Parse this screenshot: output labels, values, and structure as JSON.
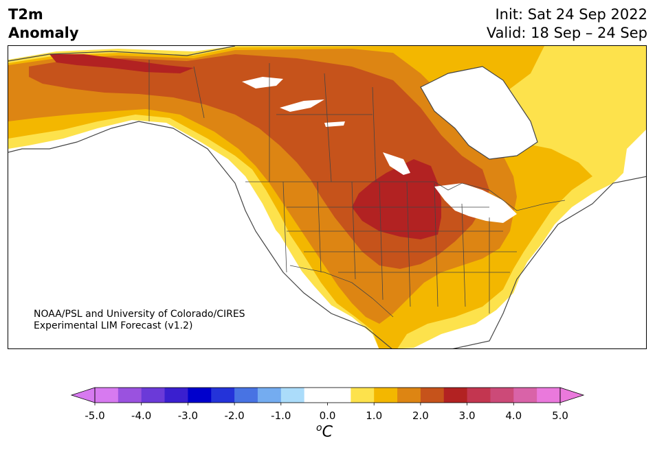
{
  "title": {
    "line1": "T2m",
    "line2": "Anomaly"
  },
  "init": {
    "line1": "Init: Sat 24 Sep 2022",
    "line2": "Valid: 18 Sep – 24 Sep"
  },
  "credit": {
    "line1": "NOAA/PSL and University of Colorado/CIRES",
    "line2": "Experimental LIM Forecast (v1.2)"
  },
  "colorbar": {
    "unit_o": "o",
    "unit_c": "C",
    "min": -5.0,
    "max": 5.0,
    "ticks": [
      "-5.0",
      "-4.0",
      "-3.0",
      "-2.0",
      "-1.0",
      "0.0",
      "1.0",
      "2.0",
      "3.0",
      "4.0",
      "5.0"
    ],
    "tick_values": [
      -5,
      -4,
      -3,
      -2,
      -1,
      0,
      1,
      2,
      3,
      4,
      5
    ],
    "low_extend_color": "#d77af0",
    "high_extend_color": "#ea79dc",
    "bins": [
      {
        "from": -5.0,
        "to": -4.5,
        "color": "#d77af0"
      },
      {
        "from": -4.5,
        "to": -4.0,
        "color": "#9a52df"
      },
      {
        "from": -4.0,
        "to": -3.5,
        "color": "#6b3ad8"
      },
      {
        "from": -3.5,
        "to": -3.0,
        "color": "#3a1fcf"
      },
      {
        "from": -3.0,
        "to": -2.5,
        "color": "#0000cc"
      },
      {
        "from": -2.5,
        "to": -2.0,
        "color": "#2433d9"
      },
      {
        "from": -2.0,
        "to": -1.5,
        "color": "#4873e3"
      },
      {
        "from": -1.5,
        "to": -1.0,
        "color": "#74acf0"
      },
      {
        "from": -1.0,
        "to": -0.5,
        "color": "#abdcfa"
      },
      {
        "from": -0.5,
        "to": 0.5,
        "color": "#ffffff"
      },
      {
        "from": 0.5,
        "to": 1.0,
        "color": "#fde24c"
      },
      {
        "from": 1.0,
        "to": 1.5,
        "color": "#f3b700"
      },
      {
        "from": 1.5,
        "to": 2.0,
        "color": "#dd8513"
      },
      {
        "from": 2.0,
        "to": 2.5,
        "color": "#c6531b"
      },
      {
        "from": 2.5,
        "to": 3.0,
        "color": "#b22222"
      },
      {
        "from": 3.0,
        "to": 3.5,
        "color": "#c33650"
      },
      {
        "from": 3.5,
        "to": 4.0,
        "color": "#cc4a78"
      },
      {
        "from": 4.0,
        "to": 4.5,
        "color": "#d963a8"
      },
      {
        "from": 4.5,
        "to": 5.0,
        "color": "#ea79dc"
      }
    ]
  },
  "map": {
    "layers": [
      {
        "level": "0.5 to 1.0",
        "color": "#fde24c"
      },
      {
        "level": "1.0 to 1.5",
        "color": "#f3b700"
      },
      {
        "level": "1.5 to 2.0",
        "color": "#dd8513"
      },
      {
        "level": "2.0 to 2.5",
        "color": "#c6531b"
      },
      {
        "level": "2.5 to 3.0",
        "color": "#b22222"
      }
    ],
    "coast_color": "#444444"
  }
}
